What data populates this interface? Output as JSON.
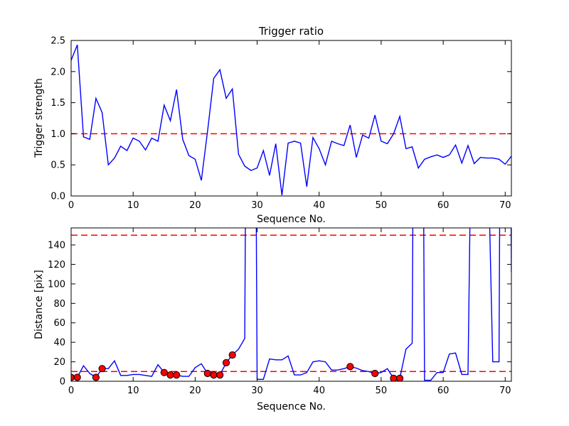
{
  "title": "Trigger ratio",
  "colors": {
    "line": "#0000ff",
    "threshold": "#ff0000",
    "marker_fill": "#ff0000",
    "marker_edge": "#000000",
    "axis": "#000000",
    "background": "#ffffff",
    "text": "#000000"
  },
  "chart_data": [
    {
      "type": "line",
      "name": "trigger-ratio",
      "title": "Trigger ratio",
      "xlabel": "Sequence No.",
      "ylabel": "Trigger strength",
      "xlim": [
        0,
        71
      ],
      "ylim": [
        0,
        2.5
      ],
      "grid": false,
      "legend": "none",
      "xticks": [
        0,
        10,
        20,
        30,
        40,
        50,
        60,
        70
      ],
      "xtick_labels": [
        "0",
        "10",
        "20",
        "30",
        "40",
        "50",
        "60",
        "70"
      ],
      "yticks": [
        0,
        0.5,
        1.0,
        1.5,
        2.0,
        2.5
      ],
      "ytick_labels": [
        "0.0",
        "0.5",
        "1.0",
        "1.5",
        "2.0",
        "2.5"
      ],
      "thresholds": [
        1.0
      ],
      "x": [
        0,
        1,
        2,
        3,
        4,
        5,
        6,
        7,
        8,
        9,
        10,
        11,
        12,
        13,
        14,
        15,
        16,
        17,
        18,
        19,
        20,
        21,
        22,
        23,
        24,
        25,
        26,
        27,
        28,
        29,
        30,
        31,
        32,
        33,
        34,
        35,
        36,
        37,
        38,
        39,
        40,
        41,
        42,
        43,
        44,
        45,
        46,
        47,
        48,
        49,
        50,
        51,
        52,
        53,
        54,
        55,
        56,
        57,
        58,
        59,
        60,
        61,
        62,
        63,
        64,
        65,
        66,
        67,
        68,
        69,
        70,
        71
      ],
      "y": [
        2.18,
        2.43,
        0.95,
        0.91,
        1.57,
        1.34,
        0.5,
        0.61,
        0.8,
        0.73,
        0.93,
        0.88,
        0.74,
        0.93,
        0.88,
        1.46,
        1.21,
        1.71,
        0.91,
        0.65,
        0.59,
        0.25,
        1.04,
        1.89,
        2.03,
        1.57,
        1.72,
        0.67,
        0.48,
        0.41,
        0.45,
        0.73,
        0.33,
        0.84,
        0.01,
        0.85,
        0.88,
        0.85,
        0.15,
        0.94,
        0.76,
        0.5,
        0.88,
        0.84,
        0.81,
        1.14,
        0.62,
        0.98,
        0.93,
        1.3,
        0.88,
        0.84,
        1.0,
        1.28,
        0.76,
        0.79,
        0.45,
        0.59,
        0.63,
        0.66,
        0.62,
        0.66,
        0.82,
        0.53,
        0.81,
        0.52,
        0.62,
        0.61,
        0.61,
        0.59,
        0.51,
        0.64
      ]
    },
    {
      "type": "line",
      "name": "distance",
      "title": "",
      "xlabel": "Sequence No.",
      "ylabel": "Distance [pix]",
      "xlim": [
        0,
        71
      ],
      "ylim": [
        0,
        157.5
      ],
      "grid": false,
      "legend": "none",
      "xticks": [
        0,
        10,
        20,
        30,
        40,
        50,
        60,
        70
      ],
      "xtick_labels": [
        "0",
        "10",
        "20",
        "30",
        "40",
        "50",
        "60",
        "70"
      ],
      "yticks": [
        0,
        20,
        40,
        60,
        80,
        100,
        120,
        140
      ],
      "ytick_labels": [
        "0",
        "20",
        "40",
        "60",
        "80",
        "100",
        "120",
        "140"
      ],
      "thresholds": [
        150,
        10
      ],
      "clip_note": "values above 157.5 are off-scale spikes clipped at the plot top",
      "x": [
        0,
        1,
        2,
        3,
        4,
        5,
        6,
        7,
        8,
        9,
        10,
        11,
        12,
        13,
        14,
        15,
        16,
        17,
        18,
        19,
        20,
        21,
        22,
        23,
        24,
        25,
        26,
        27,
        28,
        29,
        30,
        31,
        32,
        33,
        34,
        35,
        36,
        37,
        38,
        39,
        40,
        41,
        42,
        43,
        44,
        45,
        46,
        47,
        48,
        49,
        50,
        51,
        52,
        53,
        54,
        55,
        56,
        57,
        58,
        59,
        60,
        61,
        62,
        63,
        64,
        65,
        66,
        67,
        68,
        69,
        70,
        71
      ],
      "y": [
        4,
        4,
        16,
        8,
        4,
        13,
        13,
        21,
        6,
        6,
        7,
        7,
        6,
        5,
        17,
        9,
        6.5,
        6.5,
        5,
        5,
        14,
        18,
        8,
        6.5,
        6.5,
        19,
        27,
        33,
        44,
        1200,
        2,
        2,
        23,
        22,
        22,
        26,
        6.5,
        6.5,
        9,
        20,
        21,
        20,
        11.5,
        11.5,
        13,
        15,
        13.5,
        11,
        10,
        8,
        9,
        13,
        3,
        3,
        33,
        39,
        1200,
        1,
        1,
        9,
        9,
        28,
        29,
        7,
        7,
        500,
        1500,
        300,
        20,
        20,
        1400,
        112
      ],
      "markers": {
        "x": [
          0,
          1,
          4,
          5,
          15,
          16,
          17,
          22,
          23,
          24,
          25,
          26,
          45,
          49,
          52,
          53
        ],
        "y": [
          4,
          4,
          4,
          13,
          9,
          6.5,
          6.5,
          8,
          6.5,
          6.5,
          19,
          27,
          15,
          8,
          3,
          3
        ]
      }
    }
  ]
}
